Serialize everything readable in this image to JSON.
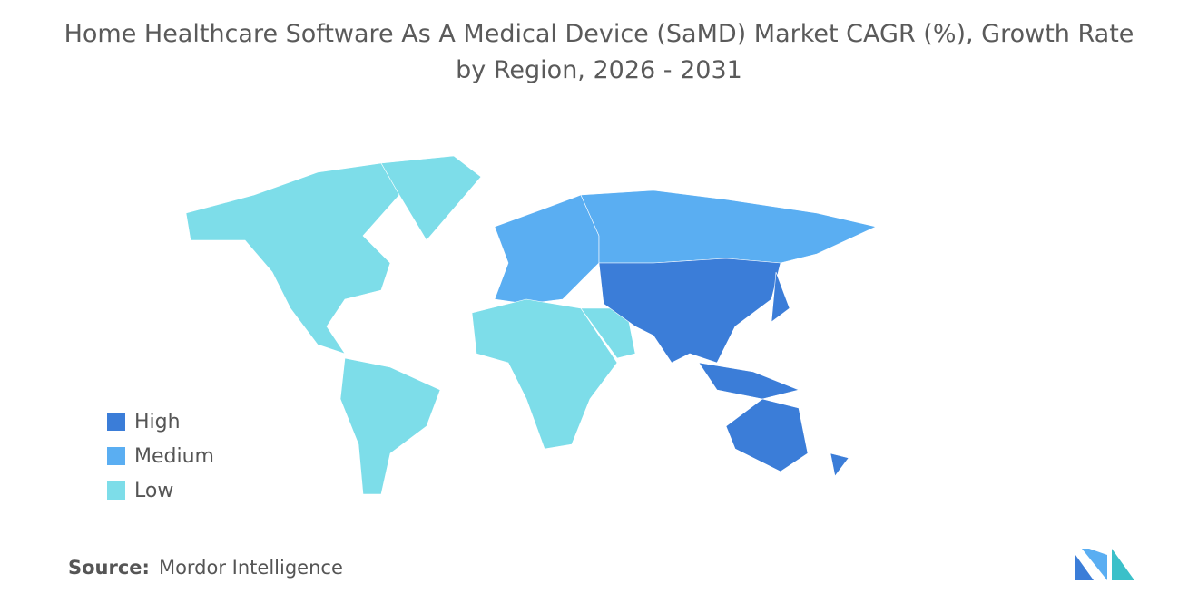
{
  "title": "Home Healthcare Software As A Medical Device (SaMD) Market CAGR (%), Growth Rate by Region, 2026 - 2031",
  "legend": [
    {
      "name": "High",
      "color": "#3b7dd8"
    },
    {
      "name": "Medium",
      "color": "#5aaef2"
    },
    {
      "name": "Low",
      "color": "#7ddde9"
    }
  ],
  "source": {
    "label": "Source:",
    "name": "Mordor Intelligence"
  }
}
